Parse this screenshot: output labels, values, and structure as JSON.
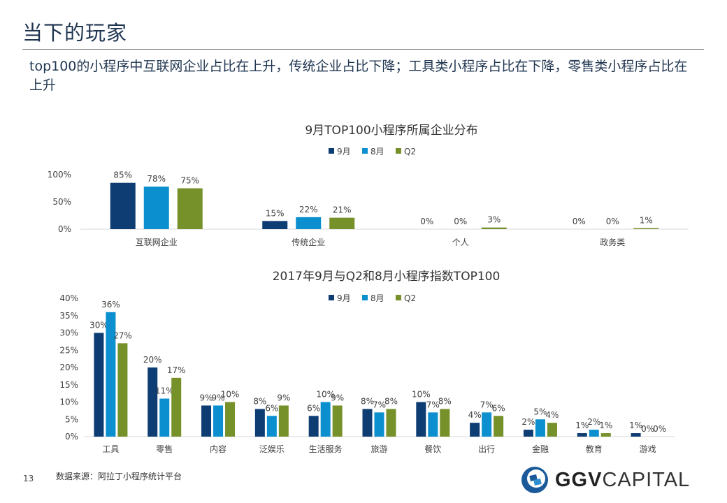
{
  "page": {
    "title": "当下的玩家",
    "subtitle": "top100的小程序中互联网企业占比在上升，传统企业占比下降；工具类小程序占比在下降，零售类小程序占比在上升",
    "page_number": "13",
    "source": "数据来源：阿拉丁小程序统计平台",
    "logo": {
      "bold": "GGV",
      "light": "CAPITAL",
      "icon": "ggv-logo-icon"
    }
  },
  "colors": {
    "sep": "#0e3d73",
    "aug": "#0b8fcf",
    "q2": "#76902a",
    "axis": "#d9d9d9",
    "text": "#404040"
  },
  "chart_data": [
    {
      "type": "bar",
      "title": "9月TOP100小程序所属企业分布",
      "legend": [
        "9月",
        "8月",
        "Q2"
      ],
      "legend_position": "top-center",
      "categories": [
        "互联网企业",
        "传统企业",
        "个人",
        "政务类"
      ],
      "series": [
        {
          "name": "9月",
          "values": [
            85,
            15,
            0,
            0
          ]
        },
        {
          "name": "8月",
          "values": [
            78,
            22,
            0,
            0
          ]
        },
        {
          "name": "Q2",
          "values": [
            75,
            21,
            3,
            1
          ]
        }
      ],
      "yticks": [
        "0%",
        "50%",
        "100%"
      ],
      "ylim": [
        0,
        100
      ],
      "grid": false,
      "xlabel": "",
      "ylabel": ""
    },
    {
      "type": "bar",
      "title": "2017年9月与Q2和8月小程序指数TOP100",
      "legend": [
        "9月",
        "8月",
        "Q2"
      ],
      "legend_position": "top-center",
      "categories": [
        "工具",
        "零售",
        "内容",
        "泛娱乐",
        "生活服务",
        "旅游",
        "餐饮",
        "出行",
        "金融",
        "教育",
        "游戏"
      ],
      "series": [
        {
          "name": "9月",
          "values": [
            30,
            20,
            9,
            8,
            6,
            8,
            10,
            4,
            2,
            1,
            1
          ]
        },
        {
          "name": "8月",
          "values": [
            36,
            11,
            9,
            6,
            10,
            7,
            7,
            7,
            5,
            2,
            0
          ]
        },
        {
          "name": "Q2",
          "values": [
            27,
            17,
            10,
            9,
            9,
            8,
            8,
            6,
            4,
            1,
            0
          ]
        }
      ],
      "yticks": [
        "0%",
        "5%",
        "10%",
        "15%",
        "20%",
        "25%",
        "30%",
        "35%",
        "40%"
      ],
      "ylim": [
        0,
        40
      ],
      "grid": false,
      "xlabel": "",
      "ylabel": ""
    }
  ]
}
